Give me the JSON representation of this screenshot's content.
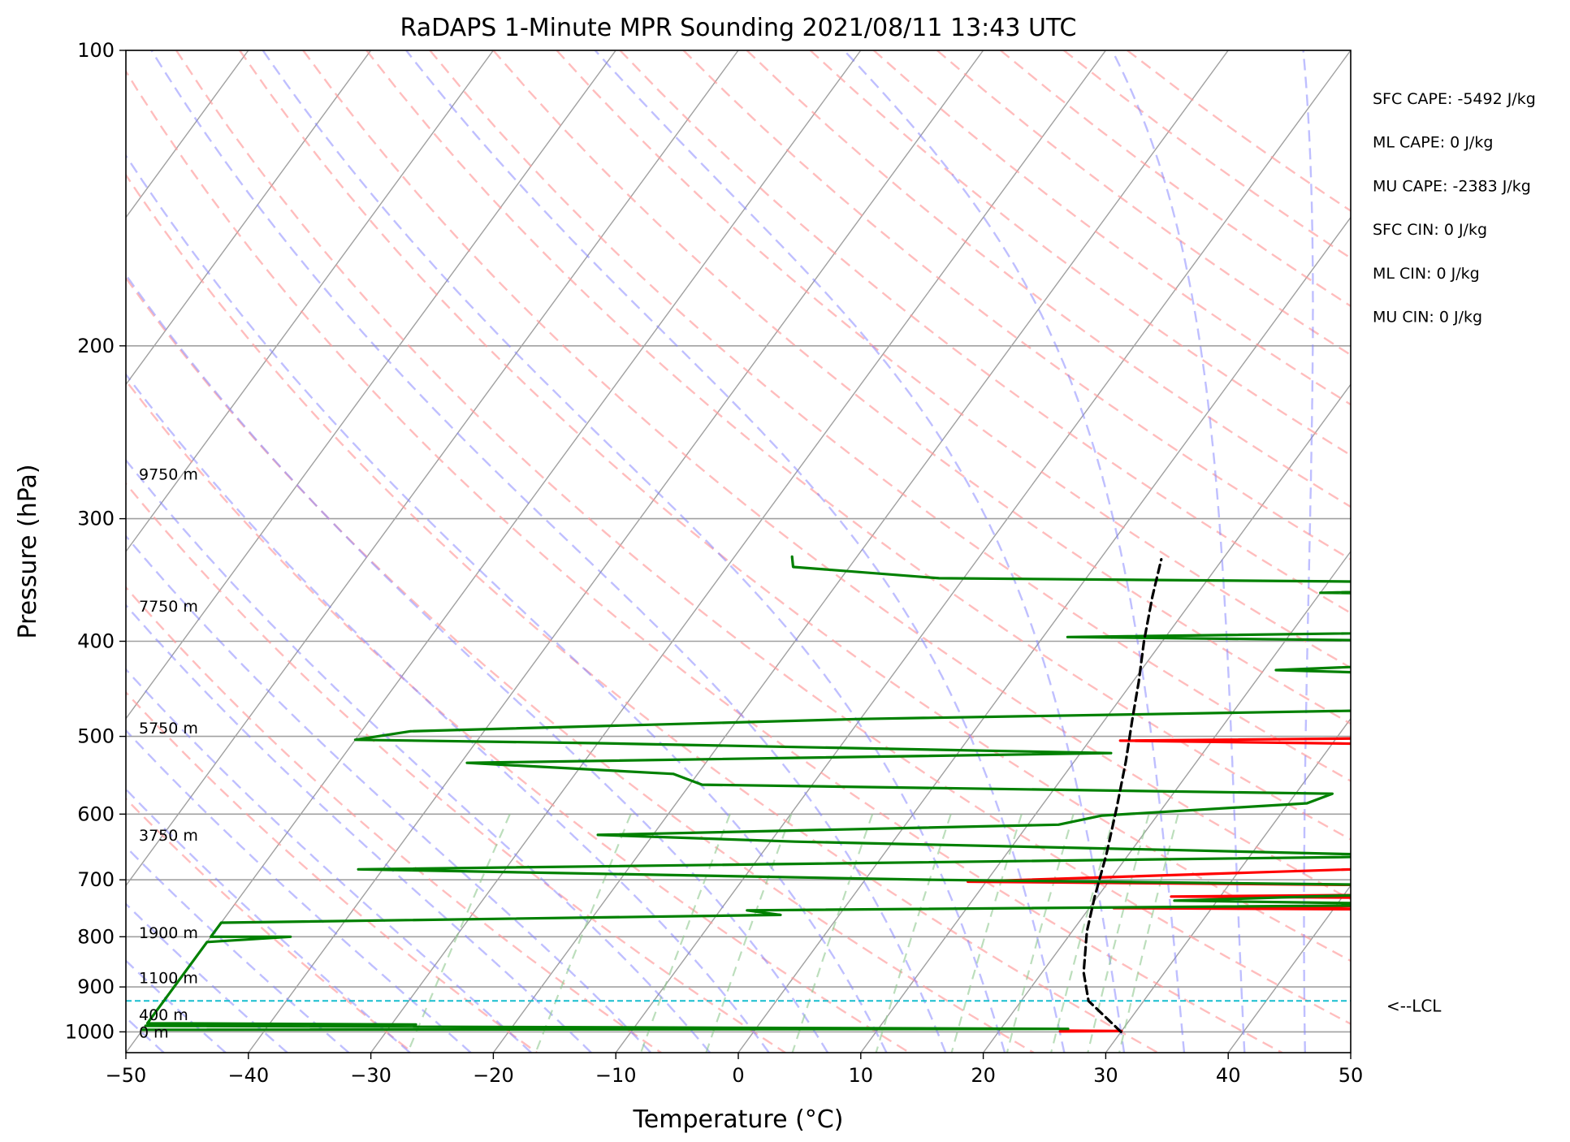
{
  "chart_data": {
    "type": "line",
    "title": "RaDAPS 1-Minute MPR Sounding 2021/08/11 13:43 UTC",
    "xlabel": "Temperature (°C)",
    "ylabel": "Pressure (hPa)",
    "xlim": [
      -50,
      50
    ],
    "ylim": [
      1050,
      100
    ],
    "y_scale": "log",
    "grid": true,
    "x_ticks": [
      "−50",
      "−40",
      "−30",
      "−20",
      "−10",
      "0",
      "10",
      "20",
      "30",
      "40",
      "50"
    ],
    "y_ticks": [
      "100",
      "200",
      "300",
      "400",
      "500",
      "600",
      "700",
      "800",
      "900",
      "1000"
    ],
    "height_labels": [
      {
        "text": "9750 m",
        "pressure": 270
      },
      {
        "text": "7750 m",
        "pressure": 368
      },
      {
        "text": "5750 m",
        "pressure": 490
      },
      {
        "text": "3750 m",
        "pressure": 630
      },
      {
        "text": "1900 m",
        "pressure": 792
      },
      {
        "text": "1100 m",
        "pressure": 880
      },
      {
        "text": "400 m",
        "pressure": 960
      },
      {
        "text": "0 m",
        "pressure": 1000
      }
    ],
    "stats": [
      "SFC CAPE: -5492 J/kg",
      "ML CAPE: 0 J/kg",
      "MU CAPE: -2383 J/kg",
      "SFC CIN: 0 J/kg",
      "ML CIN: 0 J/kg",
      "MU CIN: 0 J/kg"
    ],
    "lcl": {
      "label": "<--LCL",
      "pressure": 930
    },
    "colors": {
      "temperature": "#ff0000",
      "dewpoint": "#008000",
      "parcel": "#000000",
      "lcl": "#17becf",
      "dry_adiabat": "#ff9999",
      "moist_adiabat": "#8080ff",
      "mixing_ratio": "#90c890",
      "isotherm": "#a0a0a0"
    },
    "series": [
      {
        "key": "temperature",
        "points": [
          [
            25,
            997
          ],
          [
            30,
            998
          ],
          [
            25,
            999
          ]
        ],
        "segments": [
          [
            [
              50,
              405
            ],
            [
              41.5,
              407
            ],
            [
              50,
              410
            ]
          ],
          [
            [
              50,
              478
            ],
            [
              41.5,
              480
            ],
            [
              50,
              483
            ]
          ],
          [
            [
              50,
              500
            ],
            [
              12.5,
              505
            ],
            [
              50,
              512
            ]
          ],
          [
            [
              50,
              643
            ],
            [
              45.5,
              650
            ],
            [
              50,
              655
            ]
          ],
          [
            [
              50,
              676
            ],
            [
              8.5,
              703
            ],
            [
              50,
              710
            ]
          ],
          [
            [
              50,
              724
            ],
            [
              26,
              728
            ],
            [
              50,
              731
            ]
          ],
          [
            [
              50,
              744
            ],
            [
              22,
              748
            ],
            [
              50,
              751
            ]
          ]
        ]
      },
      {
        "key": "dewpoint",
        "points": [
          [
            -25.3,
            328
          ],
          [
            -24.6,
            336
          ],
          [
            -12,
            345
          ],
          [
            50,
            350
          ],
          [
            20,
            357
          ],
          [
            50,
            360
          ],
          [
            30.5,
            368
          ],
          [
            50,
            376
          ],
          [
            50,
            389
          ],
          [
            2,
            396
          ],
          [
            50,
            402
          ],
          [
            50,
            413
          ],
          [
            21,
            428
          ],
          [
            44.5,
            436
          ],
          [
            40,
            446
          ],
          [
            35,
            457
          ],
          [
            42,
            468
          ],
          [
            -10,
            480
          ],
          [
            -46,
            494
          ],
          [
            -50,
            504
          ],
          [
            -30,
            508
          ],
          [
            12.5,
            520
          ],
          [
            -39.5,
            532
          ],
          [
            -22,
            546
          ],
          [
            -19,
            560
          ],
          [
            33,
            572
          ],
          [
            31.5,
            585
          ],
          [
            15.5,
            602
          ],
          [
            12.5,
            615
          ],
          [
            -24.5,
            630
          ],
          [
            -8,
            640
          ],
          [
            24,
            653
          ],
          [
            44.5,
            662
          ],
          [
            -42,
            683
          ],
          [
            5.5,
            700
          ],
          [
            50,
            710
          ],
          [
            50,
            720
          ],
          [
            26.5,
            735
          ],
          [
            50,
            742
          ],
          [
            -7.8,
            752
          ],
          [
            -4.8,
            760
          ],
          [
            -50,
            774
          ],
          [
            -50,
            800
          ],
          [
            -43.5,
            800
          ],
          [
            -50,
            810
          ],
          [
            -50,
            980
          ],
          [
            -28,
            983
          ],
          [
            -50,
            986
          ],
          [
            25.5,
            993
          ],
          [
            -50,
            995
          ]
        ]
      },
      {
        "key": "parcel",
        "points": [
          [
            30,
            1000
          ],
          [
            25.5,
            930
          ],
          [
            23.4,
            870
          ],
          [
            21.2,
            790
          ],
          [
            19.8,
            730
          ],
          [
            18.2,
            660
          ],
          [
            16.2,
            590
          ],
          [
            14.2,
            530
          ],
          [
            12.2,
            480
          ],
          [
            10.5,
            440
          ],
          [
            8.5,
            400
          ],
          [
            6.5,
            360
          ],
          [
            5,
            330
          ]
        ]
      }
    ]
  }
}
